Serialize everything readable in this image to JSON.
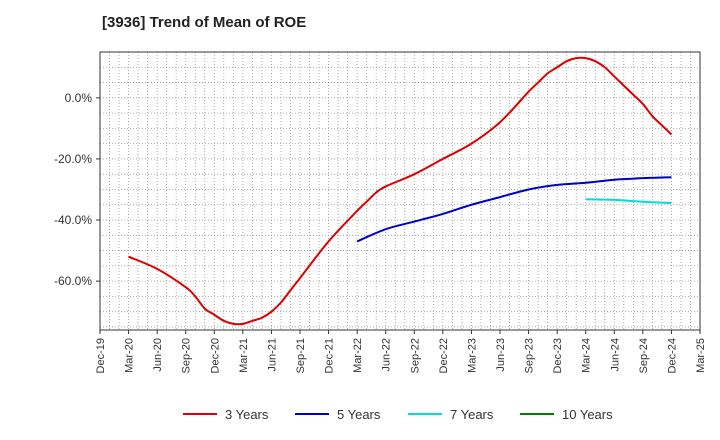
{
  "chart_data": {
    "type": "line",
    "title": "[3936]  Trend of Mean of ROE",
    "xlabel": "",
    "ylabel": "",
    "x_ticks": [
      "Dec-19",
      "Mar-20",
      "Jun-20",
      "Sep-20",
      "Dec-20",
      "Mar-21",
      "Jun-21",
      "Sep-21",
      "Dec-21",
      "Mar-22",
      "Jun-22",
      "Sep-22",
      "Dec-22",
      "Mar-23",
      "Jun-23",
      "Sep-23",
      "Dec-23",
      "Mar-24",
      "Jun-24",
      "Sep-24",
      "Dec-24",
      "Mar-25"
    ],
    "y_ticks": [
      "0.0%",
      "-20.0%",
      "-40.0%",
      "-60.0%"
    ],
    "y_tick_values": [
      0,
      -20,
      -40,
      -60
    ],
    "ylim": [
      -76,
      15
    ],
    "grid": true,
    "legend_position": "bottom",
    "series": [
      {
        "name": "3 Years",
        "color": "#dd0000",
        "x": [
          "Mar-20",
          "Jun-20",
          "Sep-20",
          "Oct-20",
          "Nov-20",
          "Dec-20",
          "Jan-21",
          "Feb-21",
          "Mar-21",
          "Apr-21",
          "May-21",
          "Jun-21",
          "Jul-21",
          "Aug-21",
          "Sep-21",
          "Dec-21",
          "Mar-22",
          "Apr-22",
          "May-22",
          "Jun-22",
          "Sep-22",
          "Dec-22",
          "Mar-23",
          "Jun-23",
          "Sep-23",
          "Oct-23",
          "Nov-23",
          "Dec-23",
          "Jan-24",
          "Feb-24",
          "Mar-24",
          "Apr-24",
          "May-24",
          "Jun-24",
          "Jul-24",
          "Aug-24",
          "Sep-24",
          "Oct-24",
          "Nov-24",
          "Dec-24"
        ],
        "values": [
          -52,
          -56,
          -62,
          -65,
          -69,
          -71,
          -73,
          -74,
          -74,
          -73,
          -72,
          -70,
          -67,
          -63,
          -59,
          -47,
          -37,
          -34,
          -31,
          -29,
          -25,
          -20,
          -15,
          -8,
          2,
          5,
          8,
          10,
          12,
          13,
          13,
          12,
          10,
          7,
          4,
          1,
          -2,
          -6,
          -9,
          -12
        ]
      },
      {
        "name": "5 Years",
        "color": "#0000cc",
        "x": [
          "Mar-22",
          "Jun-22",
          "Sep-22",
          "Dec-22",
          "Mar-23",
          "Jun-23",
          "Sep-23",
          "Dec-23",
          "Mar-24",
          "Jun-24",
          "Sep-24",
          "Dec-24"
        ],
        "values": [
          -47,
          -43,
          -40.5,
          -38,
          -35,
          -32.5,
          -30,
          -28.5,
          -27.8,
          -26.8,
          -26.3,
          -26
        ]
      },
      {
        "name": "7 Years",
        "color": "#00dddd",
        "x": [
          "Mar-24",
          "Jun-24",
          "Sep-24",
          "Dec-24"
        ],
        "values": [
          -33.2,
          -33.4,
          -34,
          -34.4
        ]
      },
      {
        "name": "10 Years",
        "color": "#008000",
        "x": [],
        "values": []
      }
    ]
  }
}
